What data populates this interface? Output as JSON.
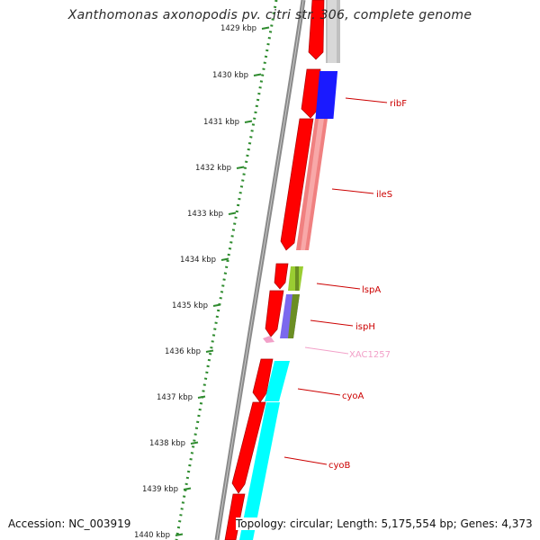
{
  "title": "Xanthomonas axonopodis pv. citri str. 306, complete genome",
  "footer": {
    "accession": "Accession: NC_003919",
    "summary": "Topology: circular; Length: 5,175,554 bp; Genes: 4,373"
  },
  "ticks": [
    "1429 kbp",
    "1430 kbp",
    "1431 kbp",
    "1432 kbp",
    "1433 kbp",
    "1434 kbp",
    "1435 kbp",
    "1436 kbp",
    "1437 kbp",
    "1438 kbp",
    "1439 kbp",
    "1440 kbp"
  ],
  "genes": [
    {
      "label": "ribF",
      "color": "#cc0000"
    },
    {
      "label": "ileS",
      "color": "#cc0000"
    },
    {
      "label": "lspA",
      "color": "#cc0000"
    },
    {
      "label": "ispH",
      "color": "#cc0000"
    },
    {
      "label": "XAC1257",
      "color": "#f2a0c8"
    },
    {
      "label": "cyoA",
      "color": "#cc0000"
    },
    {
      "label": "cyoB",
      "color": "#cc0000"
    }
  ],
  "colors": {
    "backbone": "#8a8a8a",
    "tick_dots": "#2e8b2e",
    "cds": "#ff0000",
    "ribF_cog": "#1a1aff",
    "ileS_cog": "#f08080",
    "lspA_cog": "#9acd32",
    "ispH_cog": "#7b68ee",
    "cyo_cog": "#00ffff",
    "olive": "#6b8e23",
    "upstream_cog": "#c0c0c0"
  }
}
